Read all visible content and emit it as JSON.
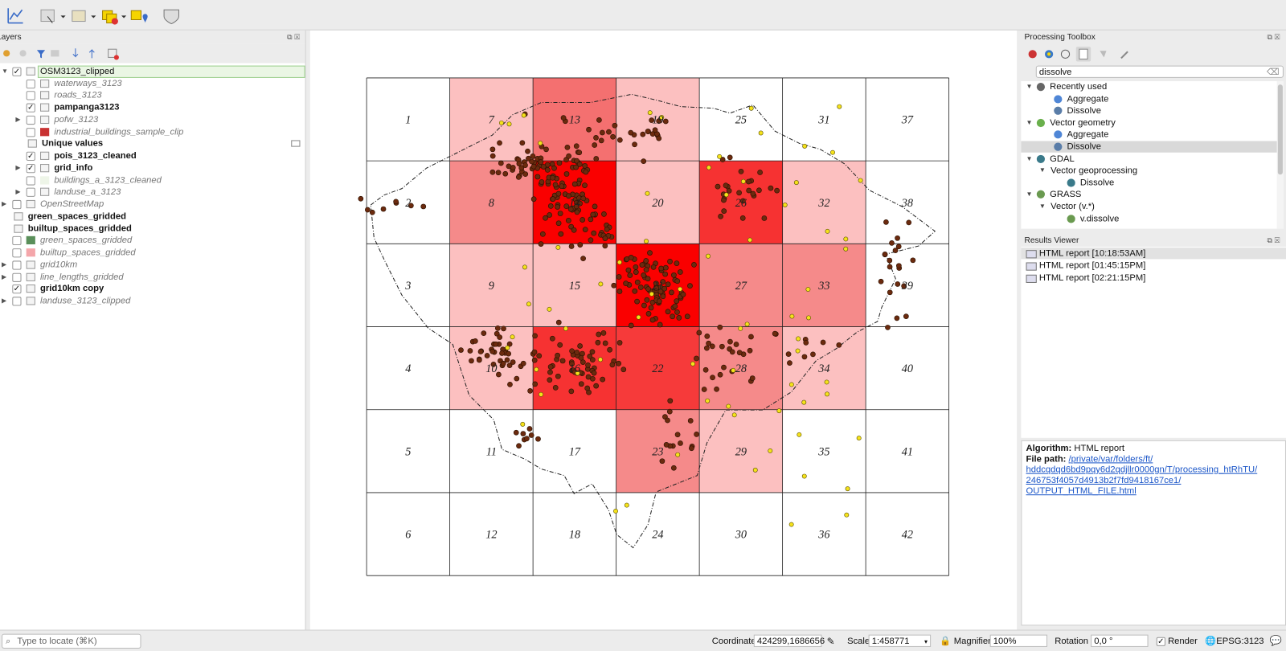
{
  "layers_panel": {
    "title": "Layers",
    "layers": [
      {
        "name": "OSM3123_clipped",
        "checked": true,
        "depth": 0,
        "style": "normal",
        "expandable": true
      },
      {
        "name": "waterways_3123",
        "checked": false,
        "depth": 1,
        "style": "italic",
        "expandable": false
      },
      {
        "name": "roads_3123",
        "checked": false,
        "depth": 1,
        "style": "italic",
        "expandable": false
      },
      {
        "name": "pampanga3123",
        "checked": true,
        "depth": 1,
        "style": "bold",
        "expandable": false
      },
      {
        "name": "pofw_3123",
        "checked": false,
        "depth": 1,
        "style": "italic",
        "expandable": true
      },
      {
        "name": "industrial_buildings_sample_clip",
        "checked": false,
        "depth": 1,
        "style": "italic",
        "expandable": false,
        "swatch": "#c83232"
      },
      {
        "name": "Unique values",
        "checked": null,
        "depth": 1,
        "style": "bold",
        "expandable": false
      },
      {
        "name": "pois_3123_cleaned",
        "checked": true,
        "depth": 1,
        "style": "bold",
        "expandable": false
      },
      {
        "name": "grid_info",
        "checked": true,
        "depth": 1,
        "style": "bold",
        "expandable": true
      },
      {
        "name": "buildings_a_3123_cleaned",
        "checked": false,
        "depth": 1,
        "style": "italic",
        "expandable": false,
        "swatch": "#eef5e8"
      },
      {
        "name": "landuse_a_3123",
        "checked": false,
        "depth": 1,
        "style": "italic",
        "expandable": true
      },
      {
        "name": "OpenStreetMap",
        "checked": false,
        "depth": 0,
        "style": "italic",
        "expandable": true
      },
      {
        "name": "green_spaces_gridded",
        "checked": null,
        "depth": 0,
        "style": "bold",
        "expandable": false
      },
      {
        "name": "builtup_spaces_gridded",
        "checked": null,
        "depth": 0,
        "style": "bold",
        "expandable": false
      },
      {
        "name": "green_spaces_gridded",
        "checked": false,
        "depth": 0,
        "style": "italic",
        "expandable": false,
        "swatch": "#5a8f5a"
      },
      {
        "name": "builtup_spaces_gridded",
        "checked": false,
        "depth": 0,
        "style": "italic",
        "expandable": false,
        "swatch": "#f4a6aa"
      },
      {
        "name": "grid10km",
        "checked": false,
        "depth": 0,
        "style": "italic",
        "expandable": true
      },
      {
        "name": "line_lengths_gridded",
        "checked": false,
        "depth": 0,
        "style": "italic",
        "expandable": true
      },
      {
        "name": "grid10km copy",
        "checked": true,
        "depth": 0,
        "style": "bold",
        "expandable": false
      },
      {
        "name": "landuse_3123_clipped",
        "checked": false,
        "depth": 0,
        "style": "italic",
        "expandable": true
      }
    ]
  },
  "map": {
    "cells": [
      {
        "label": "1",
        "fill": "#ffffff"
      },
      {
        "label": "2",
        "fill": "#ffffff"
      },
      {
        "label": "3",
        "fill": "#ffffff"
      },
      {
        "label": "4",
        "fill": "#ffffff"
      },
      {
        "label": "5",
        "fill": "#ffffff"
      },
      {
        "label": "6",
        "fill": "#ffffff"
      },
      {
        "label": "7",
        "fill": "#fcc0c0"
      },
      {
        "label": "8",
        "fill": "#f58a8a"
      },
      {
        "label": "9",
        "fill": "#fcc0c0"
      },
      {
        "label": "10",
        "fill": "#fcc0c0"
      },
      {
        "label": "11",
        "fill": "#ffffff"
      },
      {
        "label": "12",
        "fill": "#ffffff"
      },
      {
        "label": "13",
        "fill": "#f47070"
      },
      {
        "label": "14",
        "fill": "#fa0000"
      },
      {
        "label": "15",
        "fill": "#fcc0c0"
      },
      {
        "label": "16",
        "fill": "#f63232"
      },
      {
        "label": "17",
        "fill": "#ffffff"
      },
      {
        "label": "18",
        "fill": "#ffffff"
      },
      {
        "label": "19",
        "fill": "#fcc0c0"
      },
      {
        "label": "20",
        "fill": "#fcc0c0"
      },
      {
        "label": "21",
        "fill": "#fa0000"
      },
      {
        "label": "22",
        "fill": "#f63a3a"
      },
      {
        "label": "23",
        "fill": "#f58a8a"
      },
      {
        "label": "24",
        "fill": "#ffffff"
      },
      {
        "label": "25",
        "fill": "#ffffff"
      },
      {
        "label": "26",
        "fill": "#f63232"
      },
      {
        "label": "27",
        "fill": "#f58a8a"
      },
      {
        "label": "28",
        "fill": "#f58a8a"
      },
      {
        "label": "29",
        "fill": "#fcc0c0"
      },
      {
        "label": "30",
        "fill": "#ffffff"
      },
      {
        "label": "31",
        "fill": "#ffffff"
      },
      {
        "label": "32",
        "fill": "#fcc0c0"
      },
      {
        "label": "33",
        "fill": "#f58a8a"
      },
      {
        "label": "34",
        "fill": "#fcc0c0"
      },
      {
        "label": "35",
        "fill": "#ffffff"
      },
      {
        "label": "36",
        "fill": "#ffffff"
      },
      {
        "label": "37",
        "fill": "#ffffff"
      },
      {
        "label": "38",
        "fill": "#ffffff"
      },
      {
        "label": "39",
        "fill": "#ffffff"
      },
      {
        "label": "40",
        "fill": "#ffffff"
      },
      {
        "label": "41",
        "fill": "#ffffff"
      },
      {
        "label": "42",
        "fill": "#ffffff"
      }
    ]
  },
  "toolbox": {
    "title": "Processing Toolbox",
    "search": "dissolve",
    "items": [
      {
        "label": "Recently used",
        "depth": 0,
        "icon": "clock"
      },
      {
        "label": "Aggregate",
        "depth": 1,
        "icon": "gear"
      },
      {
        "label": "Dissolve",
        "depth": 1,
        "icon": "tool"
      },
      {
        "label": "Vector geometry",
        "depth": 0,
        "icon": "q"
      },
      {
        "label": "Aggregate",
        "depth": 1,
        "icon": "gear"
      },
      {
        "label": "Dissolve",
        "depth": 1,
        "icon": "tool",
        "selected": true
      },
      {
        "label": "GDAL",
        "depth": 0,
        "icon": "gdal"
      },
      {
        "label": "Vector geoprocessing",
        "depth": 1,
        "icon": "none"
      },
      {
        "label": "Dissolve",
        "depth": 2,
        "icon": "gdal"
      },
      {
        "label": "GRASS",
        "depth": 0,
        "icon": "grass"
      },
      {
        "label": "Vector (v.*)",
        "depth": 1,
        "icon": "none"
      },
      {
        "label": "v.dissolve",
        "depth": 2,
        "icon": "grass"
      }
    ]
  },
  "results": {
    "title": "Results Viewer",
    "items": [
      "HTML report [10:18:53AM]",
      "HTML report [01:45:15PM]",
      "HTML report [02:21:15PM]"
    ]
  },
  "info": {
    "algorithm_label": "Algorithm:",
    "algorithm": "HTML report",
    "path_label": "File path:",
    "path_lines": [
      "/private/var/folders/ft/",
      "hddcqdqd6bd9pqy6d2qdjllr0000gn/T/processing_htRhTU/",
      "246753f4057d4913b2f7fd9418167ce1/",
      "OUTPUT_HTML_FILE.html"
    ]
  },
  "status": {
    "locate": "Type to locate (⌘K)",
    "coordinate_label": "Coordinate",
    "coordinate": "424299,1686656",
    "scale_label": "Scale",
    "scale": "1:458771",
    "magnifier_label": "Magnifier",
    "magnifier": "100%",
    "rotation_label": "Rotation",
    "rotation": "0,0 °",
    "render_label": "Render",
    "crs": "EPSG:3123"
  }
}
